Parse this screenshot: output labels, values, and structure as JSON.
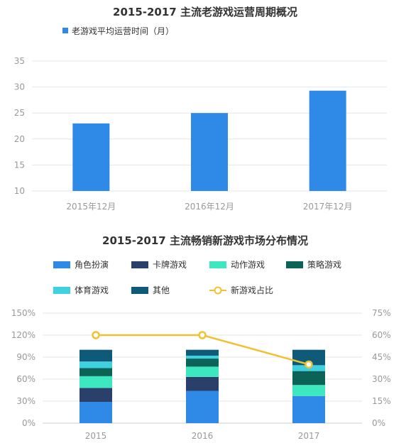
{
  "chart_data": [
    {
      "type": "bar",
      "title": "2015-2017 主流老游戏运营周期概况",
      "series": [
        {
          "name": "老游戏平均运营时间（月）",
          "values": [
            23,
            25,
            29.3
          ],
          "color": "#2e8ae6"
        }
      ],
      "categories": [
        "2015年12月",
        "2016年12月",
        "2017年12月"
      ],
      "y_ticks": [
        "35",
        "30",
        "25",
        "20",
        "15",
        "10"
      ],
      "ylim": [
        10,
        35
      ],
      "grid": true,
      "legend_position": "top-left"
    },
    {
      "type": "bar",
      "stacked": true,
      "title": "2015-2017 主流畅销新游戏市场分布情况",
      "categories": [
        "2015",
        "2016",
        "2017"
      ],
      "series": [
        {
          "name": "角色扮演",
          "values": [
            29,
            44,
            37
          ],
          "color": "#2e8ae6"
        },
        {
          "name": "卡牌游戏",
          "values": [
            19,
            19,
            0
          ],
          "color": "#2b3f6b"
        },
        {
          "name": "动作游戏",
          "values": [
            16,
            14,
            15
          ],
          "color": "#3de8c0"
        },
        {
          "name": "策略游戏",
          "values": [
            11,
            11,
            19
          ],
          "color": "#0a6356"
        },
        {
          "name": "体育游戏",
          "values": [
            9,
            4,
            8
          ],
          "color": "#3fd1e0"
        },
        {
          "name": "其他",
          "values": [
            16,
            8,
            21
          ],
          "color": "#0e5a78"
        }
      ],
      "line_series": {
        "name": "新游戏占比",
        "values": [
          60,
          60,
          40
        ],
        "color": "#f0c232"
      },
      "y_left_ticks": [
        "150%",
        "120%",
        "90%",
        "60%",
        "30%",
        "0%"
      ],
      "y_right_ticks": [
        "75%",
        "60%",
        "45%",
        "30%",
        "15%",
        "0%"
      ],
      "ylim_left": [
        0,
        150
      ],
      "ylim_right": [
        0,
        75
      ],
      "grid": true,
      "legend_position": "top"
    }
  ]
}
